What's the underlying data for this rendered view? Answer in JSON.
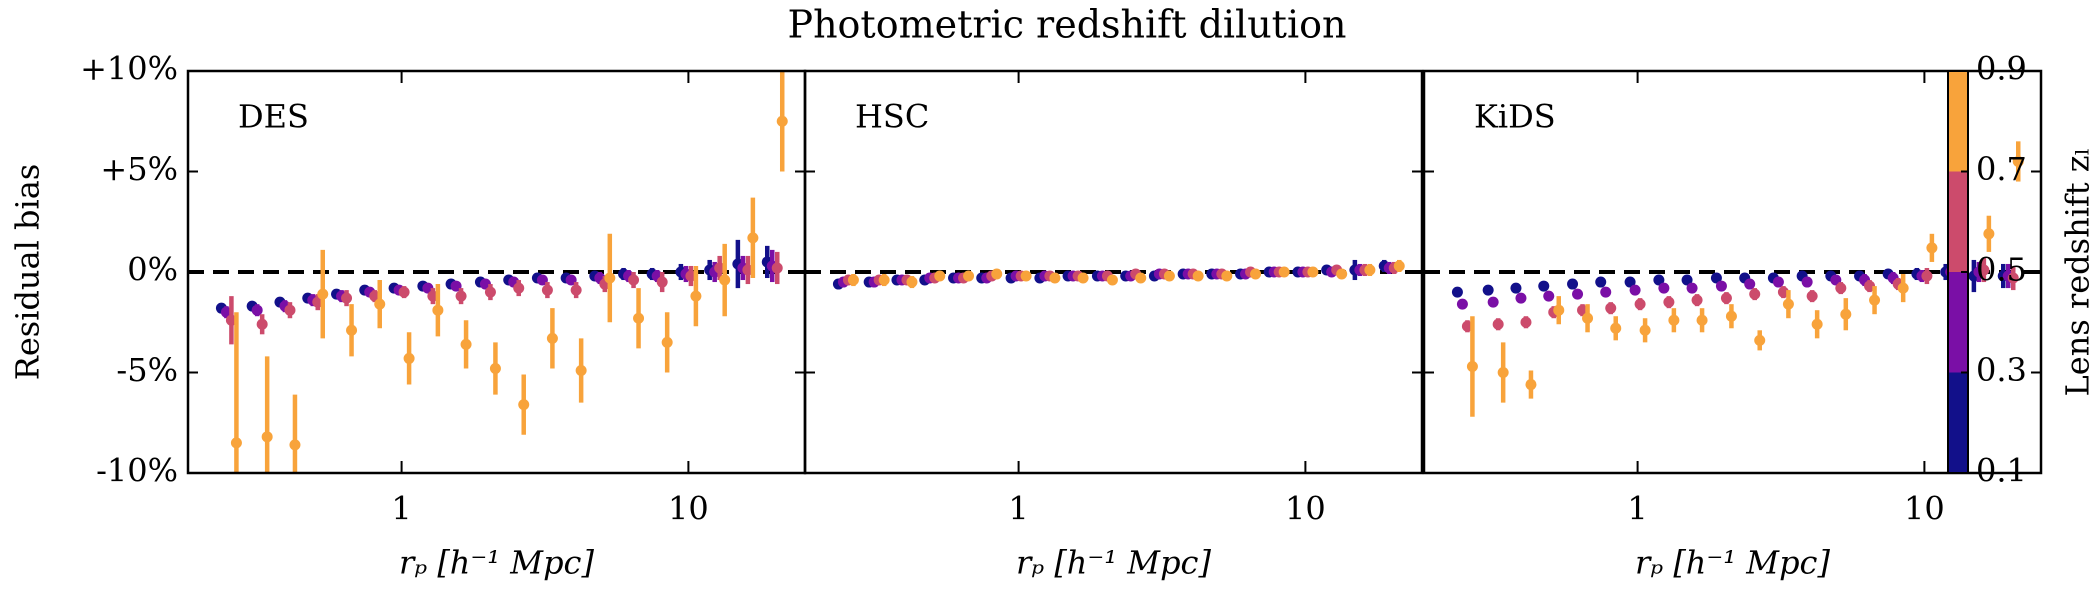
{
  "figure": {
    "title": "Photometric redshift dilution",
    "ylabel": "Residual bias",
    "colorbar": {
      "label": "Lens redshift zₗ",
      "lim": [
        0.1,
        0.9
      ],
      "ticks": [
        0.1,
        0.3,
        0.5,
        0.7,
        0.9
      ],
      "colors": [
        "#12108a",
        "#7a0fa6",
        "#cc4b6c",
        "#f8a33b"
      ]
    }
  },
  "chart_data": [
    {
      "type": "errorbar",
      "label": "DES",
      "xlabel": "rₚ [h⁻¹ Mpc]",
      "xscale": "log",
      "xlim": [
        0.18,
        25.5
      ],
      "xticks": [
        1,
        10
      ],
      "ylim": [
        -10,
        10
      ],
      "yticks": [
        {
          "value": -10,
          "label": "-10%"
        },
        {
          "value": -5,
          "label": "-5%"
        },
        {
          "value": 0,
          "label": "0%"
        },
        {
          "value": 5,
          "label": "+5%"
        },
        {
          "value": 10,
          "label": "+10%"
        }
      ],
      "hline": 0,
      "x": [
        0.25,
        0.32,
        0.4,
        0.5,
        0.63,
        0.79,
        1,
        1.26,
        1.58,
        2,
        2.51,
        3.16,
        3.98,
        5.01,
        6.31,
        7.94,
        10,
        12.6,
        15.8,
        20
      ],
      "series": [
        {
          "color": "#12108a",
          "values": [
            -1.8,
            -1.7,
            -1.5,
            -1.3,
            -1.1,
            -0.9,
            -0.8,
            -0.7,
            -0.6,
            -0.5,
            -0.4,
            -0.3,
            -0.3,
            -0.2,
            -0.1,
            -0.1,
            0,
            0.1,
            0.4,
            0.5
          ],
          "errors": [
            0.2,
            0.2,
            0.2,
            0.2,
            0.2,
            0.2,
            0.2,
            0.2,
            0.2,
            0.2,
            0.2,
            0.2,
            0.2,
            0.2,
            0.3,
            0.3,
            0.4,
            0.5,
            1.2,
            0.8
          ]
        },
        {
          "color": "#7a0fa6",
          "values": [
            -2.0,
            -1.9,
            -1.7,
            -1.4,
            -1.2,
            -1.0,
            -0.9,
            -0.8,
            -0.7,
            -0.6,
            -0.5,
            -0.4,
            -0.4,
            -0.3,
            -0.2,
            -0.2,
            -0.1,
            0,
            0.2,
            0.3
          ],
          "errors": [
            0.3,
            0.3,
            0.3,
            0.3,
            0.3,
            0.2,
            0.2,
            0.2,
            0.2,
            0.2,
            0.2,
            0.2,
            0.2,
            0.3,
            0.3,
            0.3,
            0.4,
            0.5,
            0.6,
            0.8
          ]
        },
        {
          "color": "#cc4b6c",
          "values": [
            -2.4,
            -2.6,
            -1.9,
            -1.5,
            -1.3,
            -1.2,
            -1.0,
            -1.2,
            -1.2,
            -1.0,
            -0.8,
            -0.9,
            -0.9,
            -0.6,
            -0.4,
            -0.5,
            -0.2,
            0.2,
            0.1,
            0.2
          ],
          "errors": [
            1.2,
            0.5,
            0.4,
            0.4,
            0.4,
            0.3,
            0.3,
            0.4,
            0.4,
            0.4,
            0.4,
            0.4,
            0.4,
            0.4,
            0.4,
            0.5,
            0.5,
            0.6,
            0.7,
            0.8
          ]
        },
        {
          "color": "#f8a33b",
          "values": [
            -8.5,
            -8.2,
            -8.6,
            -1.1,
            -2.9,
            -1.6,
            -4.3,
            -1.9,
            -3.6,
            -4.8,
            -6.6,
            -3.3,
            -4.9,
            -0.3,
            -2.3,
            -3.5,
            -1.2,
            -0.4,
            1.7,
            7.5
          ],
          "errors": [
            6.5,
            4.0,
            2.5,
            2.2,
            1.3,
            1.2,
            1.3,
            1.3,
            1.2,
            1.3,
            1.5,
            1.5,
            1.6,
            2.2,
            1.5,
            1.5,
            1.5,
            1.8,
            2.0,
            2.5
          ]
        }
      ]
    },
    {
      "type": "errorbar",
      "label": "HSC",
      "xlabel": "rₚ [h⁻¹ Mpc]",
      "xscale": "log",
      "xlim": [
        0.18,
        25.5
      ],
      "xticks": [
        1,
        10
      ],
      "ylim": [
        -10,
        10
      ],
      "yticks": [
        -10,
        -5,
        0,
        5,
        10
      ],
      "hline": 0,
      "x": [
        0.25,
        0.32,
        0.4,
        0.5,
        0.63,
        0.79,
        1,
        1.26,
        1.58,
        2,
        2.51,
        3.16,
        3.98,
        5.01,
        6.31,
        7.94,
        10,
        12.6,
        15.8,
        20
      ],
      "series": [
        {
          "color": "#12108a",
          "values": [
            -0.6,
            -0.5,
            -0.4,
            -0.4,
            -0.3,
            -0.3,
            -0.3,
            -0.3,
            -0.2,
            -0.2,
            -0.2,
            -0.2,
            -0.1,
            -0.1,
            -0.1,
            0,
            0,
            0.1,
            0.1,
            0.3
          ],
          "errors": [
            0.2,
            0.2,
            0.2,
            0.2,
            0.2,
            0.2,
            0.2,
            0.2,
            0.2,
            0.2,
            0.2,
            0.2,
            0.2,
            0.2,
            0.2,
            0.2,
            0.2,
            0.2,
            0.5,
            0.3
          ]
        },
        {
          "color": "#7a0fa6",
          "values": [
            -0.5,
            -0.5,
            -0.4,
            -0.3,
            -0.3,
            -0.3,
            -0.2,
            -0.2,
            -0.2,
            -0.2,
            -0.2,
            -0.1,
            -0.1,
            -0.1,
            -0.1,
            0,
            0,
            0,
            0.1,
            0.2
          ],
          "errors": [
            0.2,
            0.2,
            0.2,
            0.2,
            0.2,
            0.2,
            0.2,
            0.2,
            0.2,
            0.2,
            0.2,
            0.2,
            0.2,
            0.2,
            0.2,
            0.2,
            0.2,
            0.2,
            0.3,
            0.3
          ]
        },
        {
          "color": "#cc4b6c",
          "values": [
            -0.4,
            -0.4,
            -0.4,
            -0.3,
            -0.3,
            -0.2,
            -0.2,
            -0.2,
            -0.2,
            -0.2,
            -0.1,
            -0.1,
            -0.1,
            -0.1,
            0,
            0,
            0,
            0.1,
            0.1,
            0.2
          ],
          "errors": [
            0.2,
            0.2,
            0.2,
            0.2,
            0.2,
            0.2,
            0.2,
            0.2,
            0.2,
            0.2,
            0.2,
            0.2,
            0.2,
            0.2,
            0.2,
            0.2,
            0.2,
            0.2,
            0.3,
            0.3
          ]
        },
        {
          "color": "#f8a33b",
          "values": [
            -0.4,
            -0.4,
            -0.5,
            -0.2,
            -0.2,
            -0.1,
            -0.2,
            -0.3,
            -0.3,
            -0.4,
            -0.3,
            -0.2,
            -0.2,
            -0.2,
            -0.1,
            0,
            0,
            -0.1,
            0.1,
            0.3
          ],
          "errors": [
            0.3,
            0.3,
            0.3,
            0.2,
            0.2,
            0.2,
            0.2,
            0.2,
            0.2,
            0.2,
            0.2,
            0.2,
            0.2,
            0.2,
            0.2,
            0.2,
            0.2,
            0.2,
            0.3,
            0.3
          ]
        }
      ]
    },
    {
      "type": "errorbar",
      "label": "KiDS",
      "xlabel": "rₚ [h⁻¹ Mpc]",
      "xscale": "log",
      "xlim": [
        0.18,
        25.5
      ],
      "xticks": [
        1,
        10
      ],
      "ylim": [
        -10,
        10
      ],
      "yticks": [
        -10,
        -5,
        0,
        5,
        10
      ],
      "hline": 0,
      "x": [
        0.25,
        0.32,
        0.4,
        0.5,
        0.63,
        0.79,
        1,
        1.26,
        1.58,
        2,
        2.51,
        3.16,
        3.98,
        5.01,
        6.31,
        7.94,
        10,
        12.6,
        15.8,
        20
      ],
      "series": [
        {
          "color": "#12108a",
          "values": [
            -1.0,
            -0.9,
            -0.8,
            -0.7,
            -0.6,
            -0.5,
            -0.5,
            -0.4,
            -0.4,
            -0.3,
            -0.3,
            -0.3,
            -0.2,
            -0.2,
            -0.2,
            -0.1,
            -0.1,
            0,
            -0.2,
            -0.2
          ],
          "errors": [
            0.2,
            0.2,
            0.2,
            0.2,
            0.2,
            0.2,
            0.2,
            0.2,
            0.2,
            0.2,
            0.2,
            0.2,
            0.2,
            0.2,
            0.2,
            0.2,
            0.3,
            0.4,
            0.8,
            0.6
          ]
        },
        {
          "color": "#7a0fa6",
          "values": [
            -1.6,
            -1.5,
            -1.3,
            -1.2,
            -1.1,
            -1.0,
            -0.9,
            -0.8,
            -0.8,
            -0.7,
            -0.6,
            -0.5,
            -0.5,
            -0.4,
            -0.4,
            -0.3,
            -0.2,
            0,
            0,
            -0.2
          ],
          "errors": [
            0.2,
            0.2,
            0.2,
            0.2,
            0.2,
            0.2,
            0.2,
            0.2,
            0.2,
            0.2,
            0.2,
            0.2,
            0.2,
            0.2,
            0.3,
            0.3,
            0.3,
            0.4,
            0.5,
            0.6
          ]
        },
        {
          "color": "#cc4b6c",
          "values": [
            -2.7,
            -2.6,
            -2.5,
            -2.0,
            -1.9,
            -1.8,
            -1.6,
            -1.5,
            -1.4,
            -1.3,
            -1.1,
            -1.0,
            -1.2,
            -0.8,
            -0.7,
            -0.6,
            -0.2,
            -0.1,
            0.1,
            -0.3
          ],
          "errors": [
            0.3,
            0.3,
            0.3,
            0.3,
            0.3,
            0.3,
            0.3,
            0.3,
            0.3,
            0.3,
            0.3,
            0.3,
            0.3,
            0.3,
            0.3,
            0.3,
            0.4,
            0.5,
            0.6,
            0.6
          ]
        },
        {
          "color": "#f8a33b",
          "values": [
            -4.7,
            -5.0,
            -5.6,
            -1.9,
            -2.3,
            -2.8,
            -2.9,
            -2.4,
            -2.4,
            -2.2,
            -3.4,
            -1.6,
            -2.6,
            -2.1,
            -1.4,
            -0.8,
            1.2,
            0.2,
            1.9,
            5.5
          ],
          "errors": [
            2.5,
            1.5,
            0.7,
            0.7,
            0.7,
            0.6,
            0.6,
            0.6,
            0.6,
            0.6,
            0.5,
            0.7,
            0.7,
            0.8,
            0.7,
            0.7,
            0.7,
            0.8,
            0.9,
            1.0
          ]
        }
      ]
    }
  ]
}
